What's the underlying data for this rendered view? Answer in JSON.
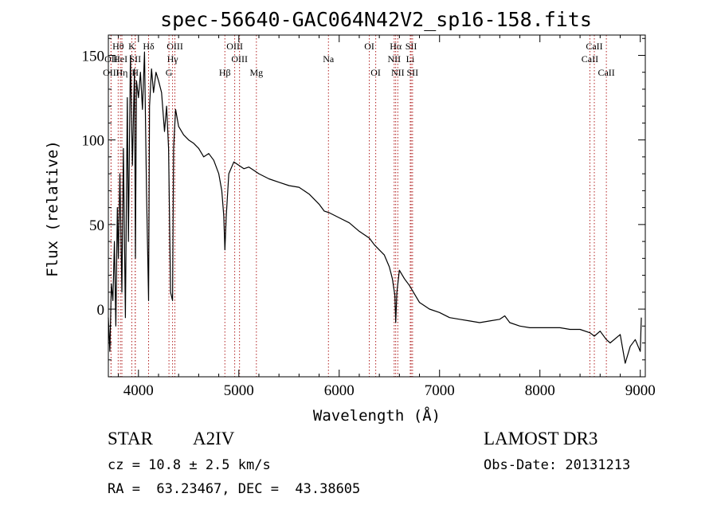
{
  "chart_data": {
    "type": "line",
    "title": "spec-56640-GAC064N42V2_sp16-158.fits",
    "xlabel": "Wavelength (Å)",
    "ylabel": "Flux (relative)",
    "xlim": [
      3700,
      9050
    ],
    "ylim": [
      -40,
      162
    ],
    "xticks": [
      4000,
      5000,
      6000,
      7000,
      8000,
      9000
    ],
    "xtick_labels": [
      "4000",
      "5000",
      "6000",
      "7000",
      "8000",
      "9000"
    ],
    "yticks": [
      0,
      50,
      100,
      150
    ],
    "ytick_labels": [
      "0",
      "50",
      "100",
      "150"
    ],
    "series": [
      {
        "name": "flux",
        "x": [
          3700,
          3715,
          3730,
          3745,
          3760,
          3775,
          3790,
          3800,
          3815,
          3835,
          3850,
          3870,
          3889,
          3900,
          3920,
          3940,
          3960,
          3970,
          3980,
          4000,
          4020,
          4040,
          4060,
          4080,
          4101,
          4110,
          4130,
          4150,
          4175,
          4200,
          4230,
          4260,
          4280,
          4300,
          4320,
          4340,
          4350,
          4370,
          4400,
          4450,
          4500,
          4550,
          4600,
          4650,
          4700,
          4750,
          4800,
          4830,
          4850,
          4861,
          4875,
          4900,
          4950,
          5000,
          5050,
          5100,
          5150,
          5200,
          5300,
          5400,
          5500,
          5600,
          5700,
          5800,
          5850,
          5900,
          6000,
          6100,
          6200,
          6300,
          6350,
          6400,
          6450,
          6500,
          6530,
          6555,
          6563,
          6575,
          6600,
          6650,
          6700,
          6750,
          6800,
          6900,
          7000,
          7100,
          7200,
          7300,
          7400,
          7500,
          7600,
          7650,
          7700,
          7800,
          7900,
          8000,
          8100,
          8200,
          8300,
          8400,
          8500,
          8542,
          8600,
          8662,
          8700,
          8800,
          8850,
          8900,
          8950,
          9000,
          9010
        ],
        "y": [
          -5,
          -25,
          15,
          5,
          40,
          -10,
          60,
          30,
          80,
          10,
          95,
          -5,
          125,
          40,
          150,
          85,
          142,
          30,
          135,
          125,
          140,
          118,
          152,
          70,
          5,
          120,
          142,
          128,
          140,
          135,
          128,
          105,
          120,
          95,
          10,
          5,
          95,
          118,
          108,
          103,
          100,
          98,
          95,
          90,
          92,
          88,
          80,
          70,
          55,
          35,
          55,
          80,
          87,
          85,
          83,
          84,
          82,
          80,
          77,
          75,
          73,
          72,
          68,
          62,
          58,
          57,
          54,
          51,
          46,
          42,
          38,
          35,
          32,
          25,
          18,
          8,
          -8,
          10,
          23,
          18,
          14,
          9,
          4,
          0,
          -2,
          -5,
          -6,
          -7,
          -8,
          -7,
          -6,
          -4,
          -8,
          -10,
          -11,
          -11,
          -11,
          -11,
          -12,
          -12,
          -14,
          -16,
          -13,
          -18,
          -20,
          -15,
          -32,
          -22,
          -18,
          -25,
          -5
        ]
      }
    ],
    "lines": [
      {
        "label": "Hθ",
        "wave": 3798,
        "row": 1
      },
      {
        "label": "OII",
        "wave": 3727,
        "row": 2
      },
      {
        "label": "OIII",
        "wave": 3727,
        "row": 3
      },
      {
        "label": "HeI",
        "wave": 3820,
        "row": 2
      },
      {
        "label": "Hη",
        "wave": 3835,
        "row": 3
      },
      {
        "label": "K",
        "wave": 3934,
        "row": 1
      },
      {
        "label": "SII",
        "wave": 3968,
        "row": 2
      },
      {
        "label": "H",
        "wave": 3968,
        "row": 3
      },
      {
        "label": "Hδ",
        "wave": 4101,
        "row": 1
      },
      {
        "label": "OIII",
        "wave": 4363,
        "row": 1
      },
      {
        "label": "Hγ",
        "wave": 4340,
        "row": 2
      },
      {
        "label": "G",
        "wave": 4304,
        "row": 3
      },
      {
        "label": "Hβ",
        "wave": 4861,
        "row": 3
      },
      {
        "label": "OIII",
        "wave": 4959,
        "row": 1
      },
      {
        "label": "OIII",
        "wave": 5007,
        "row": 2
      },
      {
        "label": "Mg",
        "wave": 5175,
        "row": 3
      },
      {
        "label": "Na",
        "wave": 5893,
        "row": 2
      },
      {
        "label": "OI",
        "wave": 6300,
        "row": 1
      },
      {
        "label": "OI",
        "wave": 6364,
        "row": 3
      },
      {
        "label": "Hα",
        "wave": 6563,
        "row": 1
      },
      {
        "label": "NII",
        "wave": 6548,
        "row": 2
      },
      {
        "label": "NII",
        "wave": 6584,
        "row": 3
      },
      {
        "label": "SII",
        "wave": 6717,
        "row": 1
      },
      {
        "label": "Li",
        "wave": 6708,
        "row": 2
      },
      {
        "label": "SII",
        "wave": 6731,
        "row": 3
      },
      {
        "label": "CaII",
        "wave": 8542,
        "row": 1
      },
      {
        "label": "CaII",
        "wave": 8498,
        "row": 2
      },
      {
        "label": "CaII",
        "wave": 8662,
        "row": 3
      }
    ]
  },
  "info": {
    "object_class": "STAR",
    "subclass": "A2IV",
    "survey": "LAMOST DR3",
    "redshift_line": "cz = 10.8 ± 2.5 km/s",
    "obs_date_line": "Obs-Date: 20131213",
    "coords_line": "RA =  63.23467, DEC =  43.38605"
  }
}
